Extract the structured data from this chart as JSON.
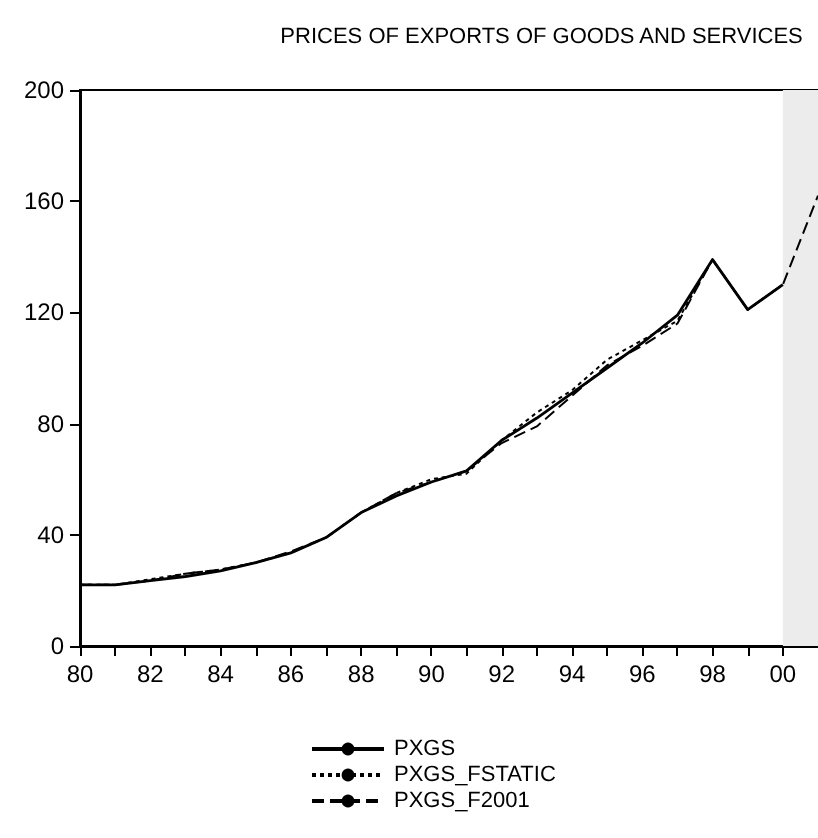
{
  "chart_data": {
    "type": "line",
    "title": "PRICES OF EXPORTS OF GOODS AND SERVICES",
    "x": [
      1980,
      1981,
      1982,
      1983,
      1984,
      1985,
      1986,
      1987,
      1988,
      1989,
      1990,
      1991,
      1992,
      1993,
      1994,
      1995,
      1996,
      1997,
      1998,
      1999,
      2000,
      2001
    ],
    "series": [
      {
        "name": "PXGS",
        "color": "#000000",
        "line_style": "solid",
        "values": [
          22,
          22,
          23.5,
          25,
          27,
          30,
          33.5,
          39,
          48,
          54,
          59,
          63,
          74,
          82,
          91,
          100,
          109,
          119,
          139,
          121,
          130,
          null
        ]
      },
      {
        "name": "PXGS_FSTATIC",
        "color": "#000000",
        "line_style": "dotted",
        "values": [
          22,
          22,
          24,
          26,
          27.5,
          30,
          33.5,
          39,
          48,
          55,
          60,
          62,
          74,
          84,
          92,
          103,
          110,
          117,
          139,
          121,
          130,
          null
        ]
      },
      {
        "name": "PXGS_F2001",
        "color": "#000000",
        "line_style": "dashed",
        "values": [
          22,
          22,
          23.5,
          26,
          27.5,
          30,
          34,
          39,
          48,
          55,
          59,
          63,
          73,
          79,
          90,
          101,
          108,
          116,
          139,
          121,
          130,
          162
        ]
      }
    ],
    "xlim": [
      1980,
      2001
    ],
    "xticks": [
      {
        "value": 1980,
        "label": "80"
      },
      {
        "value": 1981,
        "label": null
      },
      {
        "value": 1982,
        "label": "82"
      },
      {
        "value": 1983,
        "label": null
      },
      {
        "value": 1984,
        "label": "84"
      },
      {
        "value": 1985,
        "label": null
      },
      {
        "value": 1986,
        "label": "86"
      },
      {
        "value": 1987,
        "label": null
      },
      {
        "value": 1988,
        "label": "88"
      },
      {
        "value": 1989,
        "label": null
      },
      {
        "value": 1990,
        "label": "90"
      },
      {
        "value": 1991,
        "label": null
      },
      {
        "value": 1992,
        "label": "92"
      },
      {
        "value": 1993,
        "label": null
      },
      {
        "value": 1994,
        "label": "94"
      },
      {
        "value": 1995,
        "label": null
      },
      {
        "value": 1996,
        "label": "96"
      },
      {
        "value": 1997,
        "label": null
      },
      {
        "value": 1998,
        "label": "98"
      },
      {
        "value": 1999,
        "label": null
      },
      {
        "value": 2000,
        "label": "00"
      },
      {
        "value": 2001,
        "label": null
      }
    ],
    "ylim": [
      0,
      200
    ],
    "yticks": [
      0,
      40,
      80,
      120,
      160,
      200
    ],
    "bands": [
      {
        "axis": "x",
        "from": 2000,
        "to": 2001,
        "color": "#ececec"
      }
    ],
    "grid": false,
    "legend": "bottom",
    "marker": "none"
  }
}
